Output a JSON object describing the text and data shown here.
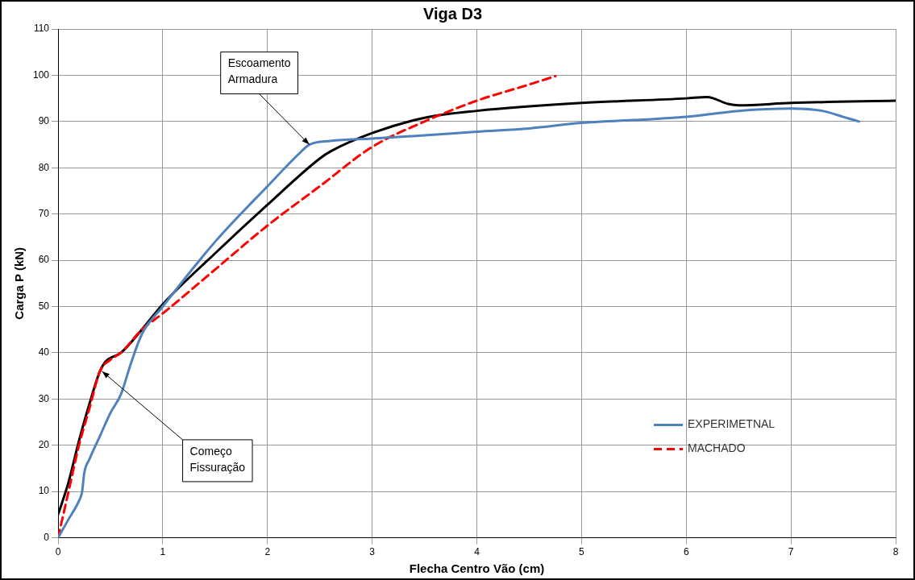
{
  "chart_data": {
    "type": "line",
    "title": "Viga D3",
    "xlabel": "Flecha Centro Vão (cm)",
    "ylabel": "Carga P (kN)",
    "xlim": [
      0,
      8
    ],
    "xticks": [
      0,
      1,
      2,
      3,
      4,
      5,
      6,
      7,
      8
    ],
    "ylim": [
      0,
      110
    ],
    "yticks": [
      0,
      10,
      20,
      30,
      40,
      50,
      60,
      70,
      80,
      90,
      100,
      110
    ],
    "grid": true,
    "legend": "bottom right",
    "series": [
      {
        "name": "EXPERIMETNAL",
        "color": "#4f81bd",
        "line_style": "solid",
        "x": [
          0,
          0.1,
          0.2,
          0.23,
          0.25,
          0.3,
          0.4,
          0.5,
          0.6,
          0.7,
          0.8,
          1.0,
          1.5,
          2.0,
          2.3,
          2.4,
          2.6,
          3.0,
          3.5,
          4.0,
          4.5,
          5.0,
          5.5,
          6.0,
          6.5,
          7.0,
          7.3,
          7.5,
          7.65
        ],
        "values": [
          0,
          4,
          8,
          10,
          14,
          17,
          22,
          27,
          31,
          38,
          44,
          50,
          64,
          76,
          83,
          85,
          85.8,
          86.3,
          87,
          87.8,
          88.5,
          89.7,
          90.3,
          91,
          92.3,
          92.8,
          92.3,
          91,
          90
        ]
      },
      {
        "name": "MACHADO",
        "color": "#ff0000",
        "line_style": "dashed",
        "x": [
          0,
          0.1,
          0.2,
          0.3,
          0.4,
          0.5,
          0.6,
          0.8,
          1.0,
          1.5,
          2.0,
          2.5,
          3.0,
          3.5,
          4.0,
          4.5,
          4.75
        ],
        "values": [
          0,
          10,
          20,
          28,
          36,
          38.5,
          40,
          45,
          48.5,
          58,
          67.5,
          76,
          84.5,
          90,
          94.5,
          98,
          99.8
        ]
      },
      {
        "color": "#000000",
        "line_style": "solid",
        "x": [
          0,
          0.1,
          0.2,
          0.3,
          0.4,
          0.45,
          0.6,
          0.8,
          1.0,
          1.5,
          2.0,
          2.5,
          2.6,
          3.0,
          3.5,
          4.0,
          5.0,
          6.0,
          6.2,
          6.4,
          6.5,
          7.0,
          8.0
        ],
        "values": [
          5,
          12,
          21,
          29,
          36,
          38,
          40,
          45,
          50.5,
          61.5,
          72,
          82,
          83.5,
          87.5,
          90.8,
          92.3,
          94,
          95,
          95.3,
          93.8,
          93.5,
          94,
          94.5
        ]
      }
    ],
    "annotations": [
      {
        "text": "Escoamento Armadura",
        "x": 2.4,
        "y": 85
      },
      {
        "text": "Começo Fissuração",
        "x": 0.42,
        "y": 36
      }
    ]
  }
}
